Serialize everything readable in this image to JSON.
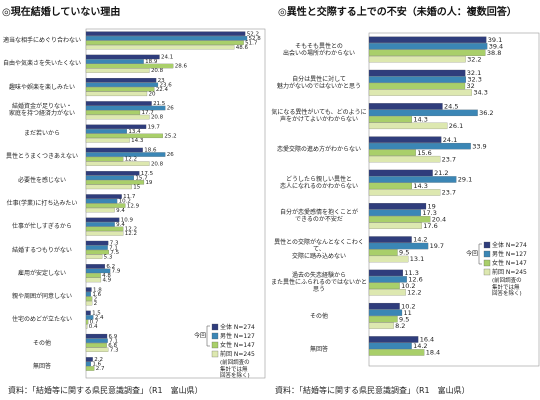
{
  "chart_data": [
    {
      "type": "bar",
      "orientation": "horizontal",
      "title": "◎現在結婚していない理由",
      "categories": [
        "適当な相手にめぐり合わない",
        "自由や気楽さを失いたくない",
        "趣味や娯楽を楽しみたい",
        "結婚資金が足りない・\n家庭を持つ経済力がない",
        "まだ若いから",
        "異性とうまくつきあえない",
        "必要性を感じない",
        "仕事(学業)に打ち込みたい",
        "仕事が忙しすぎるから",
        "結婚するつもりがない",
        "雇用が安定しない",
        "親や周囲が同意しない",
        "住宅のめどが立たない",
        "その他",
        "無回答"
      ],
      "series": [
        {
          "name": "全体 N=274",
          "color": "#2f3d7c",
          "values": [
            52.2,
            24.1,
            23.0,
            21.5,
            19.7,
            18.6,
            17.5,
            11.7,
            10.9,
            7.3,
            6.2,
            1.8,
            1.5,
            6.9,
            2.2
          ]
        },
        {
          "name": "男性 N=127",
          "color": "#3b86b5",
          "values": [
            52.8,
            18.9,
            23.6,
            26.0,
            13.4,
            26.0,
            15.7,
            10.2,
            9.4,
            7.1,
            7.9,
            1.6,
            2.4,
            7.1,
            1.6
          ]
        },
        {
          "name": "女性 N=147",
          "color": "#a9cf6a",
          "values": [
            51.7,
            28.6,
            22.4,
            17.7,
            25.2,
            12.2,
            19.0,
            12.9,
            12.2,
            7.5,
            4.8,
            2.0,
            0.7,
            6.8,
            2.7
          ]
        },
        {
          "name": "前回 N=245",
          "color": "#dde8b0",
          "values": [
            48.6,
            20.8,
            20.0,
            20.8,
            14.3,
            20.8,
            15.0,
            9.4,
            12.2,
            5.3,
            4.9,
            2.0,
            0.4,
            7.3,
            null
          ]
        }
      ],
      "legend_group_label": "今回",
      "legend_note": "(前回調査の\n集計では無\n回答を除く)",
      "source": "資料：「結婚等に関する県民意識調査」（R1　富山県）"
    },
    {
      "type": "bar",
      "orientation": "horizontal",
      "title": "◎異性と交際する上での不安（未婚の人：複数回答）",
      "categories": [
        "そもそも異性との\n出会いの場所がわからない",
        "自分は異性に対して\n魅力がないのではないかと思う",
        "気になる異性がいても、どのように\n声をかけてよいかわからない",
        "恋愛交際の進め方がわからない",
        "どうしたら親しい異性と\n恋人になれるのかわからない",
        "自分が恋愛感情を抱くことが\nできるのか不安だ",
        "異性との交際がなんとなくこわくて、\n交際に踏み込めない",
        "過去の失恋経験から\nまた異性にふられるのではないかと思う",
        "その他",
        "無回答"
      ],
      "series": [
        {
          "name": "全体 N=274",
          "color": "#2f3d7c",
          "values": [
            39.1,
            32.1,
            24.5,
            24.1,
            21.2,
            19.0,
            14.2,
            11.3,
            10.2,
            16.4
          ]
        },
        {
          "name": "男性 N=127",
          "color": "#3b86b5",
          "values": [
            39.4,
            32.3,
            36.2,
            33.9,
            29.1,
            17.3,
            19.7,
            12.6,
            11.0,
            14.2
          ]
        },
        {
          "name": "女性 N=147",
          "color": "#a9cf6a",
          "values": [
            38.8,
            32.0,
            14.3,
            15.6,
            14.3,
            20.4,
            9.5,
            10.2,
            9.5,
            18.4
          ]
        },
        {
          "name": "前回 N=245",
          "color": "#dde8b0",
          "values": [
            32.2,
            34.3,
            26.1,
            23.7,
            23.7,
            17.6,
            13.1,
            12.2,
            8.2,
            null
          ]
        }
      ],
      "legend_group_label": "今回",
      "legend_note": "(前回調査の\n集計では無\n回答を除く)",
      "source": "資料：「結婚等に関する県民意識調査」（R1　富山県）"
    }
  ]
}
